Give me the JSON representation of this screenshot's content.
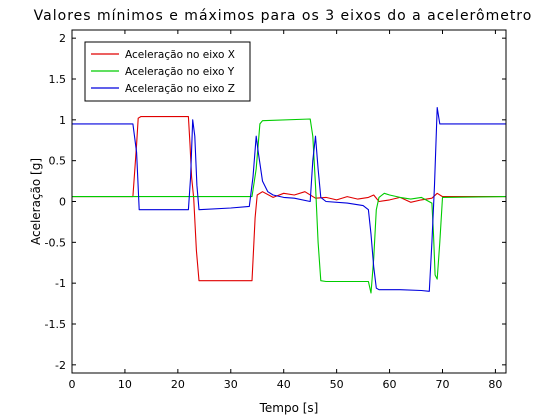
{
  "chart_data": {
    "type": "line",
    "title": "Valores mínimos e máximos para os 3 eixos do a acelerômetro",
    "xlabel": "Tempo [s]",
    "ylabel": "Aceleração [g]",
    "xlim": [
      0,
      82
    ],
    "ylim": [
      -2.1,
      2.1
    ],
    "xticks": [
      0,
      10,
      20,
      30,
      40,
      50,
      60,
      70,
      80
    ],
    "yticks": [
      -2,
      -1.5,
      -1,
      -0.5,
      0,
      0.5,
      1,
      1.5,
      2
    ],
    "xtick_labels": [
      "0",
      "10",
      "20",
      "30",
      "40",
      "50",
      "60",
      "70",
      "80"
    ],
    "ytick_labels": [
      "-2",
      "-1.5",
      "-1",
      "-0.5",
      "0",
      "0.5",
      "1",
      "1.5",
      "2"
    ],
    "grid": false,
    "legend": "top-left",
    "series": [
      {
        "name": "Aceleração no eixo X",
        "color": "#e00000",
        "x": [
          0,
          11.5,
          12.2,
          12.5,
          13,
          22,
          22.3,
          22.6,
          23,
          23.5,
          24,
          34,
          34.3,
          34.6,
          35,
          36,
          38,
          40,
          42,
          44,
          46,
          48,
          50,
          52,
          54,
          56,
          57,
          58,
          60,
          62,
          64,
          66,
          68,
          69,
          70,
          75,
          82
        ],
        "y": [
          0.06,
          0.06,
          0.7,
          1.02,
          1.04,
          1.04,
          0.7,
          0.3,
          0.04,
          -0.6,
          -0.97,
          -0.97,
          -0.6,
          -0.2,
          0.08,
          0.12,
          0.05,
          0.1,
          0.08,
          0.12,
          0.04,
          0.05,
          0.02,
          0.06,
          0.03,
          0.05,
          0.08,
          0.0,
          0.02,
          0.05,
          -0.01,
          0.02,
          0.04,
          0.1,
          0.06,
          0.06,
          0.06
        ]
      },
      {
        "name": "Aceleração no eixo Y",
        "color": "#00cc00",
        "x": [
          0,
          22,
          34,
          34.8,
          35.5,
          36,
          45,
          45.5,
          46,
          46.5,
          47,
          48,
          56,
          56.5,
          57,
          57.5,
          58,
          59,
          60,
          62,
          64,
          66,
          68,
          68.3,
          68.6,
          69,
          69.5,
          70,
          82
        ],
        "y": [
          0.06,
          0.06,
          0.06,
          0.4,
          0.95,
          0.99,
          1.01,
          0.8,
          0.2,
          -0.5,
          -0.97,
          -0.98,
          -0.98,
          -1.12,
          -0.7,
          -0.1,
          0.05,
          0.1,
          0.08,
          0.05,
          0.03,
          0.05,
          -0.02,
          -0.4,
          -0.9,
          -0.95,
          -0.5,
          0.05,
          0.06
        ]
      },
      {
        "name": "Aceleração no eixo Z",
        "color": "#0000dd",
        "x": [
          0,
          11.5,
          12.2,
          12.7,
          13,
          22,
          22.4,
          22.8,
          23.2,
          23.6,
          24,
          30,
          33.5,
          34.2,
          34.8,
          35.2,
          36,
          37,
          38,
          40,
          42,
          45,
          45.5,
          46,
          46.5,
          47,
          48,
          52,
          55,
          56,
          56.5,
          57,
          57.5,
          58,
          62,
          66,
          67.5,
          68,
          68.5,
          69,
          69.5,
          70,
          82
        ],
        "y": [
          0.95,
          0.95,
          0.6,
          -0.1,
          -0.1,
          -0.1,
          0.3,
          1.0,
          0.8,
          0.2,
          -0.1,
          -0.08,
          -0.06,
          0.3,
          0.8,
          0.6,
          0.25,
          0.12,
          0.08,
          0.05,
          0.04,
          0.0,
          0.5,
          0.8,
          0.4,
          0.05,
          0.0,
          -0.02,
          -0.05,
          -0.1,
          -0.4,
          -0.8,
          -1.06,
          -1.08,
          -1.08,
          -1.09,
          -1.1,
          -0.5,
          0.2,
          1.15,
          0.95,
          0.95,
          0.95
        ]
      }
    ]
  }
}
